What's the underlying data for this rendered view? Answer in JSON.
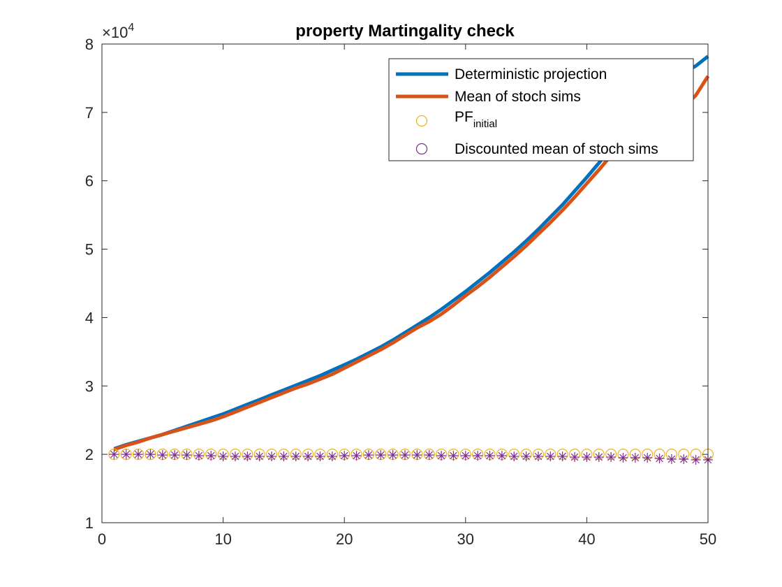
{
  "chart_data": {
    "type": "line",
    "title": "property Martingality check",
    "xlabel": "",
    "ylabel": "",
    "xlim": [
      0,
      50
    ],
    "ylim": [
      10000,
      80000
    ],
    "y_exponent_base": "×10",
    "y_exponent_power": "4",
    "x_ticks": [
      0,
      10,
      20,
      30,
      40,
      50
    ],
    "x_tick_labels": [
      "0",
      "10",
      "20",
      "30",
      "40",
      "50"
    ],
    "y_ticks": [
      10000,
      20000,
      30000,
      40000,
      50000,
      60000,
      70000,
      80000
    ],
    "y_tick_labels": [
      "1",
      "2",
      "3",
      "4",
      "5",
      "6",
      "7",
      "8"
    ],
    "grid": false,
    "legend_position": "top-right",
    "x": [
      1,
      2,
      3,
      4,
      5,
      6,
      7,
      8,
      9,
      10,
      11,
      12,
      13,
      14,
      15,
      16,
      17,
      18,
      19,
      20,
      21,
      22,
      23,
      24,
      25,
      26,
      27,
      28,
      29,
      30,
      31,
      32,
      33,
      34,
      35,
      36,
      37,
      38,
      39,
      40,
      41,
      42,
      43,
      44,
      45,
      46,
      47,
      48,
      49,
      50
    ],
    "series": [
      {
        "name": "Deterministic projection",
        "style": "line",
        "color": "#0072BD",
        "values": [
          20800,
          21400,
          21900,
          22400,
          22900,
          23500,
          24100,
          24700,
          25300,
          25900,
          26600,
          27300,
          28000,
          28700,
          29400,
          30100,
          30800,
          31500,
          32300,
          33100,
          33900,
          34800,
          35700,
          36700,
          37800,
          38900,
          40000,
          41200,
          42500,
          43800,
          45200,
          46600,
          48100,
          49600,
          51200,
          52900,
          54700,
          56500,
          58500,
          60500,
          62600,
          64800,
          67000,
          69300,
          71500,
          73500,
          74800,
          75800,
          76800,
          78200
        ]
      },
      {
        "name": "Mean of stoch sims",
        "style": "line",
        "color": "#D95319",
        "values": [
          20700,
          21300,
          21800,
          22400,
          22900,
          23400,
          23900,
          24400,
          24900,
          25500,
          26200,
          26900,
          27600,
          28300,
          29000,
          29700,
          30300,
          31000,
          31700,
          32600,
          33500,
          34400,
          35300,
          36300,
          37400,
          38500,
          39400,
          40500,
          41800,
          43200,
          44500,
          45900,
          47400,
          48900,
          50500,
          52200,
          53900,
          55700,
          57600,
          59600,
          61600,
          63700,
          65800,
          67500,
          68000,
          68500,
          69500,
          70800,
          72500,
          75300
        ]
      },
      {
        "name": "PF",
        "name_subscript": "initial",
        "style": "circle",
        "color": "#EDB120",
        "values": [
          20000,
          20000,
          20000,
          20000,
          20000,
          20000,
          20000,
          20000,
          20000,
          20000,
          20000,
          20000,
          20000,
          20000,
          20000,
          20000,
          20000,
          20000,
          20000,
          20000,
          20000,
          20000,
          20000,
          20000,
          20000,
          20000,
          20000,
          20000,
          20000,
          20000,
          20000,
          20000,
          20000,
          20000,
          20000,
          20000,
          20000,
          20000,
          20000,
          20000,
          20000,
          20000,
          20000,
          20000,
          20000,
          20000,
          20000,
          20000,
          20000,
          20000
        ]
      },
      {
        "name": "Discounted mean of stoch sims",
        "style": "asterisk",
        "color": "#7E2F8E",
        "values": [
          20000,
          20000,
          20000,
          20000,
          19900,
          19900,
          19900,
          19800,
          19800,
          19700,
          19700,
          19700,
          19700,
          19700,
          19700,
          19700,
          19700,
          19700,
          19700,
          19800,
          19800,
          19900,
          19900,
          19900,
          19900,
          19900,
          19900,
          19800,
          19800,
          19800,
          19800,
          19800,
          19800,
          19700,
          19700,
          19700,
          19700,
          19700,
          19600,
          19600,
          19600,
          19600,
          19500,
          19500,
          19500,
          19400,
          19300,
          19300,
          19200,
          19200
        ]
      }
    ]
  }
}
